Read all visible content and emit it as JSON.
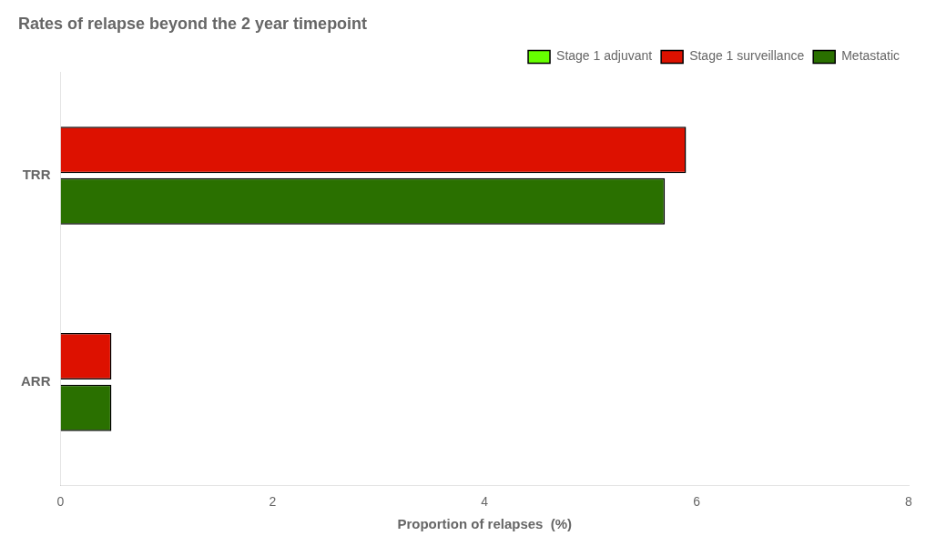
{
  "chart_data": {
    "type": "bar",
    "orientation": "horizontal",
    "title": "Rates of relapse beyond the 2 year timepoint",
    "xlabel": "Proportion of relapses  (%)",
    "categories": [
      "ARR",
      "TRR"
    ],
    "series": [
      {
        "name": "Stage 1 adjuvant",
        "color": "#66ff00",
        "values": [
          null,
          null
        ]
      },
      {
        "name": "Stage 1 surveillance",
        "color": "#dd1100",
        "values": [
          0.48,
          5.9
        ]
      },
      {
        "name": "Metastatic",
        "color": "#2a7000",
        "values": [
          0.48,
          5.7
        ]
      }
    ],
    "xlim": [
      0,
      8
    ],
    "xticks": [
      0,
      2,
      4,
      6,
      8
    ],
    "grid": false,
    "legend": "upper right"
  }
}
